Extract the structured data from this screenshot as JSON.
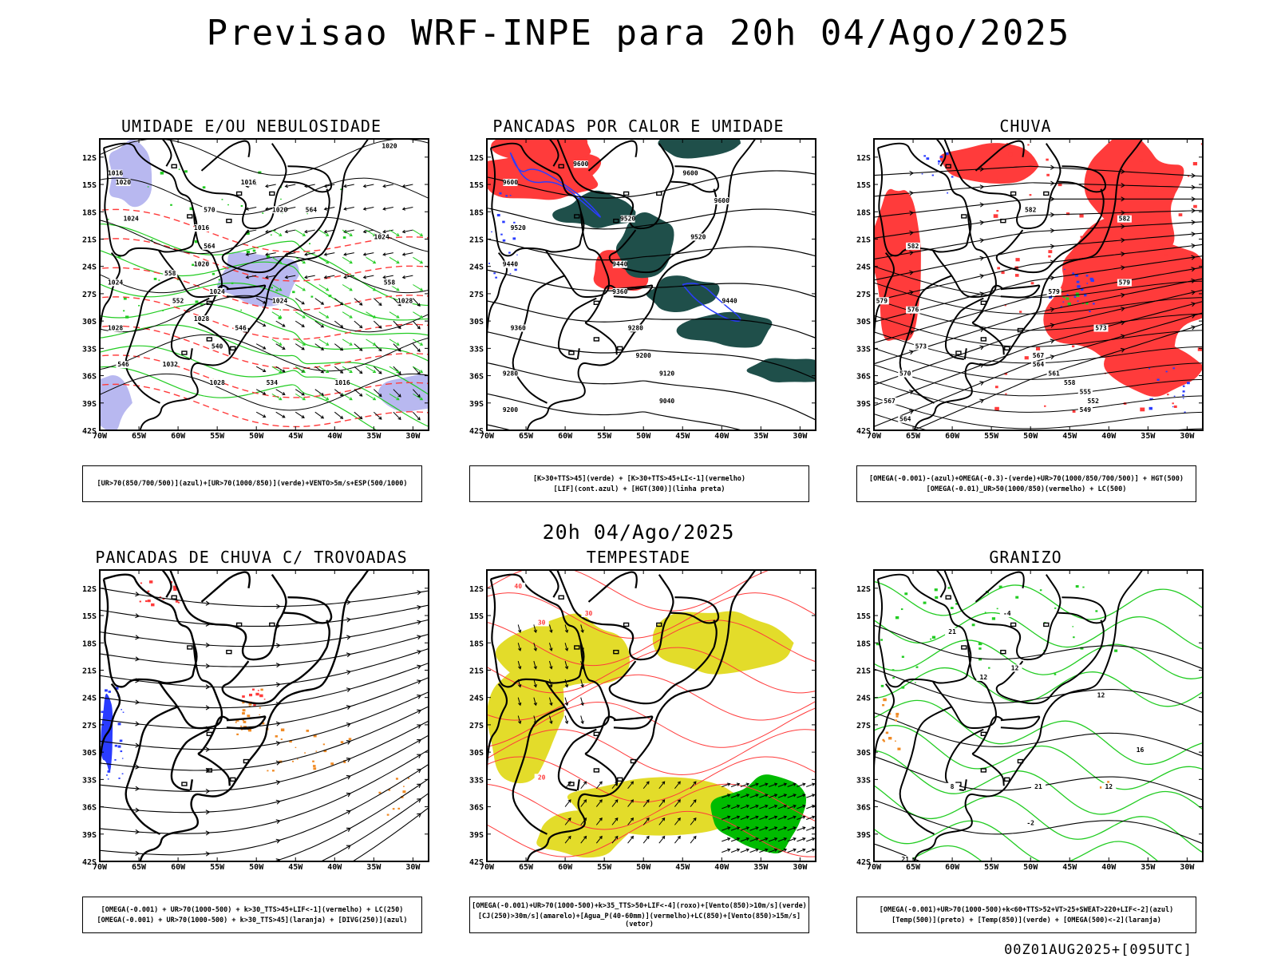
{
  "header": {
    "title": "Previsao WRF-INPE  para 20h 04/Ago/2025"
  },
  "mid_title": "20h 04/Ago/2025",
  "footer": "00Z01AUG2025+[095UTC]",
  "axes": {
    "lat_ticks": [
      "12S",
      "15S",
      "18S",
      "21S",
      "24S",
      "27S",
      "30S",
      "33S",
      "36S",
      "39S",
      "42S"
    ],
    "lon_ticks": [
      "70W",
      "65W",
      "60W",
      "55W",
      "50W",
      "45W",
      "40W",
      "35W",
      "30W"
    ]
  },
  "colors": {
    "black": "#000000",
    "green": "#22cc22",
    "red": "#ff3b3b",
    "blue": "#2a3cff",
    "lavender": "#b8b8f0",
    "darkteal": "#1f4f4a",
    "yellow": "#e3dc2a",
    "orange": "#f08a24",
    "bright_green": "#00bb00"
  },
  "chart_data": [
    {
      "type": "heatmap",
      "id": "umidade",
      "title": "UMIDADE E/OU NEBULOSIDADE",
      "legend": [
        "[UR>70(850/700/500)](azul)+[UR>70(1000/850)](verde)+VENTO>5m/s+ESP(500/1000)"
      ],
      "xlim": [
        -70,
        -28
      ],
      "ylim": [
        -42,
        -10
      ],
      "contour_labels": [
        {
          "text": "1016",
          "lon": -68,
          "lat": -14
        },
        {
          "text": "1020",
          "lon": -67,
          "lat": -15
        },
        {
          "text": "1024",
          "lon": -66,
          "lat": -19
        },
        {
          "text": "1016",
          "lon": -51,
          "lat": -15
        },
        {
          "text": "1020",
          "lon": -47,
          "lat": -18
        },
        {
          "text": "1020",
          "lon": -33,
          "lat": -11
        },
        {
          "text": "1016",
          "lon": -57,
          "lat": -20
        },
        {
          "text": "1020",
          "lon": -57,
          "lat": -24
        },
        {
          "text": "1024",
          "lon": -55,
          "lat": -27
        },
        {
          "text": "1028",
          "lon": -57,
          "lat": -30
        },
        {
          "text": "1032",
          "lon": -61,
          "lat": -35
        },
        {
          "text": "1028",
          "lon": -55,
          "lat": -37
        },
        {
          "text": "1024",
          "lon": -47,
          "lat": -28
        },
        {
          "text": "1024",
          "lon": -34,
          "lat": -21
        },
        {
          "text": "1028",
          "lon": -31,
          "lat": -28
        },
        {
          "text": "1016",
          "lon": -39,
          "lat": -37
        },
        {
          "text": "1028",
          "lon": -68,
          "lat": -31
        },
        {
          "text": "1024",
          "lon": -68,
          "lat": -26
        },
        {
          "text": "1020",
          "lon": -42,
          "lat": -10
        },
        {
          "text": "570",
          "lon": -56,
          "lat": -18
        },
        {
          "text": "564",
          "lon": -43,
          "lat": -18
        },
        {
          "text": "564",
          "lon": -56,
          "lat": -22
        },
        {
          "text": "558",
          "lon": -61,
          "lat": -25
        },
        {
          "text": "552",
          "lon": -60,
          "lat": -28
        },
        {
          "text": "546",
          "lon": -52,
          "lat": -31
        },
        {
          "text": "540",
          "lon": -55,
          "lat": -33
        },
        {
          "text": "534",
          "lon": -48,
          "lat": -37
        },
        {
          "text": "546",
          "lon": -67,
          "lat": -35
        },
        {
          "text": "558",
          "lon": -33,
          "lat": -26
        }
      ]
    },
    {
      "type": "heatmap",
      "id": "pancadas_calor",
      "title": "PANCADAS POR CALOR E UMIDADE",
      "legend": [
        "[K>30+TTS>45](verde) + [K>30+TTS>45+LI<-1](vermelho)",
        "[LIF](cont.azul) + [HGT(300)](linha preta)"
      ],
      "xlim": [
        -70,
        -28
      ],
      "ylim": [
        -42,
        -10
      ],
      "contour_labels": [
        {
          "text": "9600",
          "lon": -67,
          "lat": -15
        },
        {
          "text": "9520",
          "lon": -66,
          "lat": -20
        },
        {
          "text": "9440",
          "lon": -67,
          "lat": -24
        },
        {
          "text": "9360",
          "lon": -66,
          "lat": -31
        },
        {
          "text": "9280",
          "lon": -67,
          "lat": -36
        },
        {
          "text": "9200",
          "lon": -67,
          "lat": -40
        },
        {
          "text": "9600",
          "lon": -58,
          "lat": -13
        },
        {
          "text": "9520",
          "lon": -52,
          "lat": -19
        },
        {
          "text": "9440",
          "lon": -53,
          "lat": -24
        },
        {
          "text": "9360",
          "lon": -53,
          "lat": -27
        },
        {
          "text": "9280",
          "lon": -51,
          "lat": -31
        },
        {
          "text": "9200",
          "lon": -50,
          "lat": -34
        },
        {
          "text": "9120",
          "lon": -47,
          "lat": -36
        },
        {
          "text": "9040",
          "lon": -47,
          "lat": -39
        },
        {
          "text": "9600",
          "lon": -40,
          "lat": -17
        },
        {
          "text": "9520",
          "lon": -43,
          "lat": -21
        },
        {
          "text": "9440",
          "lon": -39,
          "lat": -28
        },
        {
          "text": "9600",
          "lon": -44,
          "lat": -14
        }
      ]
    },
    {
      "type": "heatmap",
      "id": "chuva",
      "title": "CHUVA",
      "legend": [
        "[OMEGA(-0.001)-(azul)+OMEGA(-0.3)-(verde)+UR>70(1000/850/700/500)] + HGT(500)",
        "[OMEGA(-0.01)_UR>50(1000/850)(vermelho) + LC(500)"
      ],
      "xlim": [
        -70,
        -28
      ],
      "ylim": [
        -42,
        -10
      ],
      "contour_labels": [
        {
          "text": "582",
          "lon": -50,
          "lat": -18
        },
        {
          "text": "582",
          "lon": -38,
          "lat": -19
        },
        {
          "text": "579",
          "lon": -47,
          "lat": -27
        },
        {
          "text": "579",
          "lon": -38,
          "lat": -26
        },
        {
          "text": "576",
          "lon": -65,
          "lat": -29
        },
        {
          "text": "579",
          "lon": -69,
          "lat": -28
        },
        {
          "text": "573",
          "lon": -64,
          "lat": -33
        },
        {
          "text": "570",
          "lon": -66,
          "lat": -36
        },
        {
          "text": "567",
          "lon": -68,
          "lat": -39
        },
        {
          "text": "564",
          "lon": -66,
          "lat": -41
        },
        {
          "text": "567",
          "lon": -49,
          "lat": -34
        },
        {
          "text": "564",
          "lon": -49,
          "lat": -35
        },
        {
          "text": "561",
          "lon": -47,
          "lat": -36
        },
        {
          "text": "558",
          "lon": -45,
          "lat": -37
        },
        {
          "text": "555",
          "lon": -43,
          "lat": -38
        },
        {
          "text": "552",
          "lon": -42,
          "lat": -39
        },
        {
          "text": "549",
          "lon": -43,
          "lat": -40
        },
        {
          "text": "573",
          "lon": -41,
          "lat": -31
        },
        {
          "text": "582",
          "lon": -65,
          "lat": -22
        }
      ]
    },
    {
      "type": "heatmap",
      "id": "pancadas_trovoadas",
      "title": "PANCADAS DE CHUVA C/ TROVOADAS",
      "legend": [
        "[OMEGA(-0.001) + UR>70(1000-500) + k>30_TTS>45+LIF<-1](vermelho) + LC(250)",
        "[OMEGA(-0.001) + UR>70(1000-500) + k>30_TTS>45](laranja) + [DIVG(250)](azul)"
      ],
      "xlim": [
        -70,
        -28
      ],
      "ylim": [
        -42,
        -10
      ],
      "contour_labels": []
    },
    {
      "type": "heatmap",
      "id": "tempestade",
      "title": "TEMPESTADE",
      "legend": [
        "[OMEGA(-0.001)+UR>70(1000-500)+k>35_TTS>50+LIF<-4](roxo)+[Vento(850)>10m/s](verde)",
        "[CJ(250)>30m/s](amarelo)+[Agua_P(40-60mm)](vermelho)+LC(850)+[Vento(850)>15m/s](vetor)"
      ],
      "xlim": [
        -70,
        -28
      ],
      "ylim": [
        -42,
        -10
      ],
      "contour_labels": [
        {
          "text": "40",
          "lon": -66,
          "lat": -12
        },
        {
          "text": "30",
          "lon": -63,
          "lat": -16
        },
        {
          "text": "30",
          "lon": -57,
          "lat": -15
        },
        {
          "text": "20",
          "lon": -63,
          "lat": -33
        }
      ]
    },
    {
      "type": "heatmap",
      "id": "granizo",
      "title": "GRANIZO",
      "legend": [
        "[OMEGA(-0.001)+UR>70(1000-500)+k<60+TTS>52+VT>25+SWEAT>220+LIF<-2](azul)",
        "[Temp(500)](preto) + [Temp(850)](verde) + [OMEGA(500)<-2](laranja)"
      ],
      "xlim": [
        -70,
        -28
      ],
      "ylim": [
        -42,
        -10
      ],
      "contour_labels": [
        {
          "text": "12",
          "lon": -52,
          "lat": -21
        },
        {
          "text": "12",
          "lon": -56,
          "lat": -22
        },
        {
          "text": "12",
          "lon": -41,
          "lat": -24
        },
        {
          "text": "16",
          "lon": -36,
          "lat": -30
        },
        {
          "text": "21",
          "lon": -49,
          "lat": -34
        },
        {
          "text": "12",
          "lon": -40,
          "lat": -34
        },
        {
          "text": "-2",
          "lon": -50,
          "lat": -38
        },
        {
          "text": "21",
          "lon": -66,
          "lat": -42
        },
        {
          "text": "8",
          "lon": -60,
          "lat": -34
        },
        {
          "text": "21",
          "lon": -60,
          "lat": -17
        },
        {
          "text": "-4",
          "lon": -53,
          "lat": -15
        }
      ]
    }
  ]
}
